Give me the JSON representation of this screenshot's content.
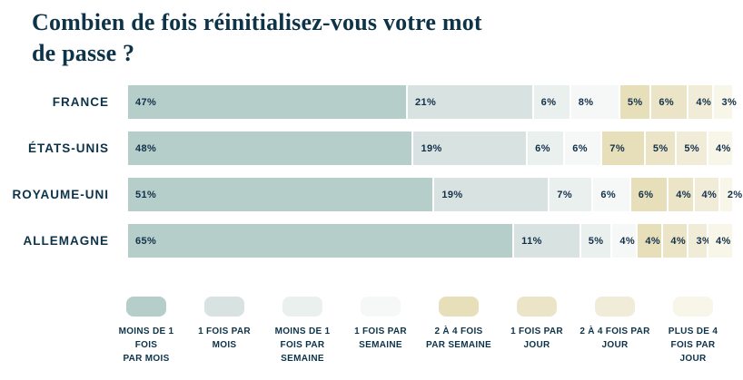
{
  "page": {
    "title": "Combien de fois réinitialisez-vous votre mot\nde passe ?"
  },
  "colors": {
    "text": "#0d3349",
    "background": "#ffffff",
    "palette": [
      "#b5cec9",
      "#d8e3e1",
      "#eaf0ee",
      "#f5f8f7",
      "#e7dfba",
      "#ece4c6",
      "#f1ecd7",
      "#f8f5e9"
    ]
  },
  "chart_data": {
    "type": "bar",
    "variant": "horizontal-stacked",
    "title": "Combien de fois réinitialisez-vous votre mot de passe ?",
    "unit": "%",
    "grid": false,
    "legend_position": "bottom",
    "categories": [
      "FRANCE",
      "ÉTATS-UNIS",
      "ROYAUME-UNI",
      "ALLEMAGNE"
    ],
    "series": [
      {
        "name": "Moins de 1 fois par mois",
        "color": "#b5cec9",
        "values": [
          47,
          48,
          51,
          65
        ]
      },
      {
        "name": "1 fois par mois",
        "color": "#d8e3e1",
        "values": [
          21,
          19,
          19,
          11
        ]
      },
      {
        "name": "Moins de 1 fois par semaine",
        "color": "#eaf0ee",
        "values": [
          6,
          6,
          7,
          5
        ]
      },
      {
        "name": "1 fois par semaine",
        "color": "#f5f8f7",
        "values": [
          8,
          6,
          6,
          4
        ]
      },
      {
        "name": "2 à 4 fois par semaine",
        "color": "#e7dfba",
        "values": [
          5,
          7,
          6,
          4
        ]
      },
      {
        "name": "1 fois par jour",
        "color": "#ece4c6",
        "values": [
          6,
          5,
          4,
          4
        ]
      },
      {
        "name": "2 à 4 fois par jour",
        "color": "#f1ecd7",
        "values": [
          4,
          5,
          4,
          3
        ]
      },
      {
        "name": "Plus de 4 fois par jour",
        "color": "#f8f5e9",
        "values": [
          3,
          4,
          2,
          4
        ]
      }
    ]
  },
  "legend": {
    "items": [
      {
        "label": "MOINS DE 1 FOIS\nPAR MOIS",
        "color": "#b5cec9"
      },
      {
        "label": "1 FOIS PAR\nMOIS",
        "color": "#d8e3e1"
      },
      {
        "label": "MOINS DE 1\nFOIS PAR\nSEMAINE",
        "color": "#eaf0ee"
      },
      {
        "label": "1 FOIS PAR\nSEMAINE",
        "color": "#f5f8f7"
      },
      {
        "label": "2 À 4 FOIS\nPAR SEMAINE",
        "color": "#e7dfba"
      },
      {
        "label": "1 FOIS PAR\nJOUR",
        "color": "#ece4c6"
      },
      {
        "label": "2 À 4 FOIS PAR\nJOUR",
        "color": "#f1ecd7"
      },
      {
        "label": "PLUS DE 4\nFOIS PAR\nJOUR",
        "color": "#f8f5e9"
      }
    ]
  }
}
